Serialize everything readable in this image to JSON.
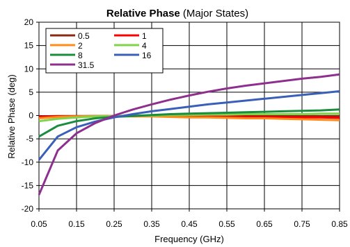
{
  "chart_data": {
    "type": "line",
    "title_bold": "Relative Phase",
    "title_rest": " (Major States)",
    "xlabel": "Frequency (GHz)",
    "ylabel": "Relative Phase (deg)",
    "xlim": [
      0.05,
      0.85
    ],
    "ylim": [
      -20,
      20
    ],
    "xticks": [
      "0.05",
      "0.15",
      "0.25",
      "0.35",
      "0.45",
      "0.55",
      "0.65",
      "0.75",
      "0.85"
    ],
    "yticks": [
      "20",
      "15",
      "10",
      "5",
      "0",
      "-5",
      "-10",
      "-15",
      "-20"
    ],
    "grid": true,
    "legend_position": "top-left",
    "x": [
      0.05,
      0.1,
      0.15,
      0.2,
      0.25,
      0.3,
      0.35,
      0.4,
      0.45,
      0.5,
      0.55,
      0.6,
      0.65,
      0.7,
      0.75,
      0.8,
      0.85
    ],
    "series": [
      {
        "name": "0.5",
        "color": "#8b2a10",
        "values": [
          -0.2,
          -0.1,
          -0.1,
          -0.1,
          -0.1,
          -0.1,
          -0.1,
          -0.1,
          -0.1,
          -0.1,
          -0.1,
          -0.1,
          -0.1,
          -0.1,
          -0.1,
          -0.1,
          -0.1
        ]
      },
      {
        "name": "1",
        "color": "#ff0000",
        "values": [
          -0.3,
          -0.2,
          -0.2,
          -0.1,
          -0.1,
          -0.1,
          -0.1,
          -0.2,
          -0.2,
          -0.2,
          -0.3,
          -0.3,
          -0.3,
          -0.4,
          -0.4,
          -0.4,
          -0.5
        ]
      },
      {
        "name": "2",
        "color": "#ff8c1a",
        "values": [
          -0.6,
          -0.3,
          -0.2,
          -0.1,
          -0.1,
          -0.2,
          -0.2,
          -0.3,
          -0.4,
          -0.4,
          -0.5,
          -0.6,
          -0.6,
          -0.7,
          -0.8,
          -0.9,
          -1.0
        ]
      },
      {
        "name": "4",
        "color": "#7fd44a",
        "values": [
          -1.2,
          -0.7,
          -0.4,
          -0.2,
          -0.1,
          0.0,
          0.0,
          0.1,
          0.1,
          0.2,
          0.2,
          0.3,
          0.3,
          0.3,
          0.3,
          0.4,
          0.4
        ]
      },
      {
        "name": "8",
        "color": "#1a8c3e",
        "values": [
          -4.5,
          -2.2,
          -1.2,
          -0.6,
          -0.3,
          -0.1,
          0.1,
          0.3,
          0.4,
          0.5,
          0.6,
          0.7,
          0.8,
          0.9,
          1.0,
          1.1,
          1.3
        ]
      },
      {
        "name": "16",
        "color": "#3a5fb8",
        "values": [
          -9.5,
          -4.5,
          -2.5,
          -1.3,
          -0.4,
          0.3,
          0.9,
          1.4,
          1.9,
          2.4,
          2.8,
          3.2,
          3.6,
          4.0,
          4.4,
          4.8,
          5.2
        ]
      },
      {
        "name": "31.5",
        "color": "#8e2f8e",
        "values": [
          -17.0,
          -7.5,
          -3.8,
          -1.6,
          0.0,
          1.3,
          2.4,
          3.4,
          4.3,
          5.1,
          5.8,
          6.4,
          6.9,
          7.4,
          7.9,
          8.3,
          8.8
        ]
      }
    ]
  }
}
